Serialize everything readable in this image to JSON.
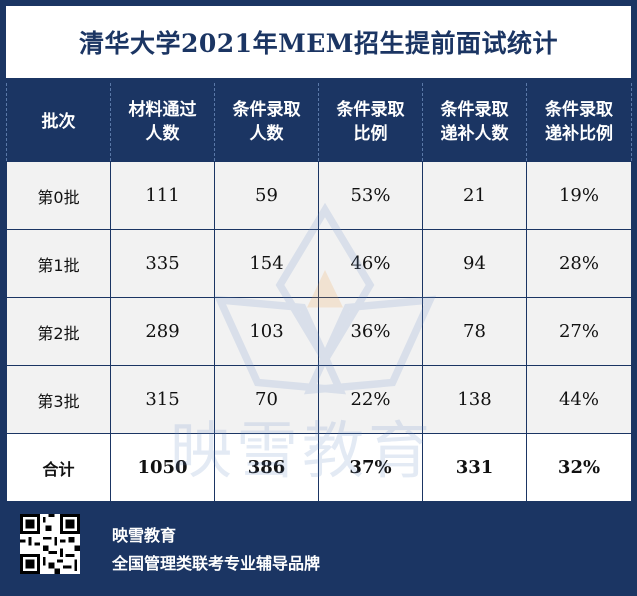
{
  "title": "清华大学2021年MEM招生提前面试统计",
  "table": {
    "headers": [
      [
        "批次"
      ],
      [
        "材料通过",
        "人数"
      ],
      [
        "条件录取",
        "人数"
      ],
      [
        "条件录取",
        "比例"
      ],
      [
        "条件录取",
        "递补人数"
      ],
      [
        "条件录取",
        "递补比例"
      ]
    ],
    "rows": [
      [
        "第0批",
        "111",
        "59",
        "53%",
        "21",
        "19%"
      ],
      [
        "第1批",
        "335",
        "154",
        "46%",
        "94",
        "28%"
      ],
      [
        "第2批",
        "289",
        "103",
        "36%",
        "78",
        "27%"
      ],
      [
        "第3批",
        "315",
        "70",
        "22%",
        "138",
        "44%"
      ]
    ],
    "total": [
      "合计",
      "1050",
      "386",
      "37%",
      "331",
      "32%"
    ]
  },
  "watermark": "映雪教育",
  "footer": {
    "brand": "映雪教育",
    "slogan": "全国管理类联考专业辅导品牌",
    "qr_icon": "qr-code-icon"
  },
  "colors": {
    "navy": "#1b3563",
    "cell_bg": "#f2f2f2"
  }
}
